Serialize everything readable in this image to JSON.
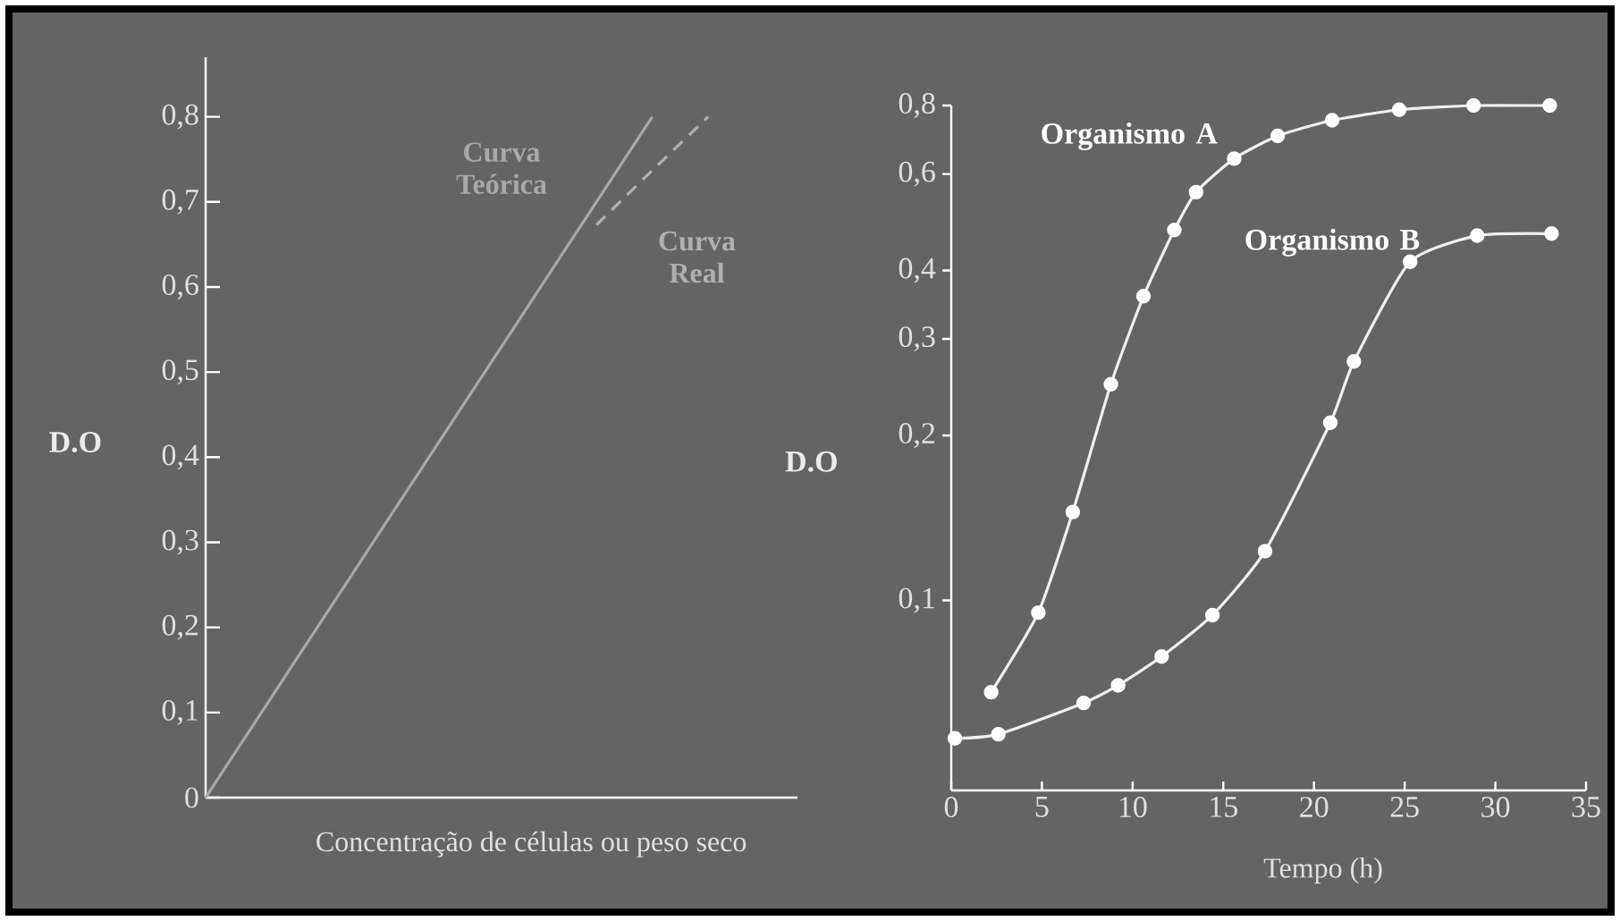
{
  "chart_data": [
    {
      "type": "line",
      "xlabel": "Concentração de células ou peso seco",
      "ylabel": "D.O",
      "categories": [
        null,
        null,
        null,
        null,
        null,
        null,
        null,
        null,
        null,
        null
      ],
      "ylim": [
        0,
        0.87
      ],
      "tick_labels": "y",
      "yticks": [
        {
          "value": 0,
          "label": "0"
        },
        {
          "value": 0.1,
          "label": "0,1"
        },
        {
          "value": 0.2,
          "label": "0,2"
        },
        {
          "value": 0.3,
          "label": "0,3"
        },
        {
          "value": 0.4,
          "label": "0,4"
        },
        {
          "value": 0.5,
          "label": "0,5"
        },
        {
          "value": 0.6,
          "label": "0,6"
        },
        {
          "value": 0.7,
          "label": "0,7"
        },
        {
          "value": 0.8,
          "label": "0,8"
        }
      ],
      "series": [
        {
          "name": "Curva Teórica",
          "color": "#a8a8a8",
          "line_style": "solid",
          "values": [
            0,
            0.1,
            0.2,
            0.3,
            0.4,
            0.5,
            0.6,
            0.7,
            0.8,
            null
          ]
        },
        {
          "name": "Curva Real",
          "color": "#b0b0b0",
          "line_style": "dashed",
          "values": [
            null,
            null,
            null,
            null,
            null,
            null,
            null,
            0.673,
            0.737,
            0.8
          ]
        }
      ]
    },
    {
      "type": "line",
      "log": "y",
      "marker": "circle",
      "xlabel": "Tempo (h)",
      "ylabel": "D.O",
      "xlim": [
        0,
        35
      ],
      "xticks": [
        0,
        5,
        10,
        15,
        20,
        25,
        30,
        35
      ],
      "ylim": [
        0.045,
        0.8
      ],
      "yticks": [
        {
          "value": 0.1,
          "label": "0,1"
        },
        {
          "value": 0.2,
          "label": "0,2"
        },
        {
          "value": 0.3,
          "label": "0,3"
        },
        {
          "value": 0.4,
          "label": "0,4"
        },
        {
          "value": 0.6,
          "label": "0,6"
        },
        {
          "value": 0.8,
          "label": "0,8"
        }
      ],
      "series": [
        {
          "name": "Organismo A",
          "color": "#f0f0f0",
          "x": [
            2.2,
            4.8,
            6.7,
            8.8,
            10.6,
            12.3,
            13.5,
            15.6,
            18.0,
            21.0,
            24.7,
            28.8,
            33.0
          ],
          "values": [
            0.068,
            0.095,
            0.145,
            0.248,
            0.359,
            0.474,
            0.556,
            0.64,
            0.704,
            0.752,
            0.786,
            0.8,
            0.8
          ]
        },
        {
          "name": "Organismo B",
          "color": "#f0f0f0",
          "x": [
            0.2,
            2.6,
            7.3,
            9.2,
            11.6,
            14.4,
            17.3,
            20.9,
            22.2,
            25.3,
            29.0,
            33.1
          ],
          "values": [
            0.056,
            0.057,
            0.065,
            0.07,
            0.079,
            0.094,
            0.123,
            0.211,
            0.273,
            0.415,
            0.463,
            0.467
          ]
        }
      ]
    }
  ]
}
